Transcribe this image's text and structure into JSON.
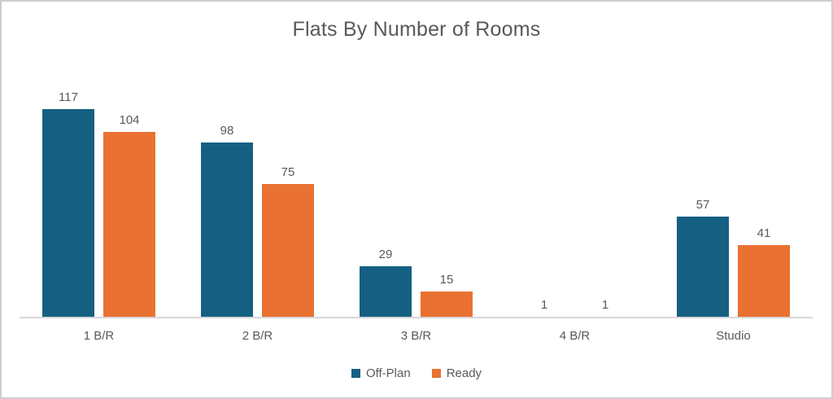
{
  "chart_data": {
    "type": "bar",
    "title": "Flats By Number of Rooms",
    "categories": [
      "1 B/R",
      "2 B/R",
      "3 B/R",
      "4 B/R",
      "Studio"
    ],
    "series": [
      {
        "name": "Off-Plan",
        "color": "#156082",
        "values": [
          117,
          98,
          29,
          1,
          57
        ]
      },
      {
        "name": "Ready",
        "color": "#E97132",
        "values": [
          104,
          75,
          15,
          1,
          41
        ]
      }
    ],
    "xlabel": "",
    "ylabel": "",
    "ylim": [
      0,
      120
    ],
    "grid": false,
    "data_labels": true,
    "legend_position": "bottom"
  },
  "style": {
    "text_color": "#595959",
    "axis_line_color": "#D8D8D8",
    "frame_border_color": "#CDCDCD",
    "background": "#FFFFFF"
  }
}
